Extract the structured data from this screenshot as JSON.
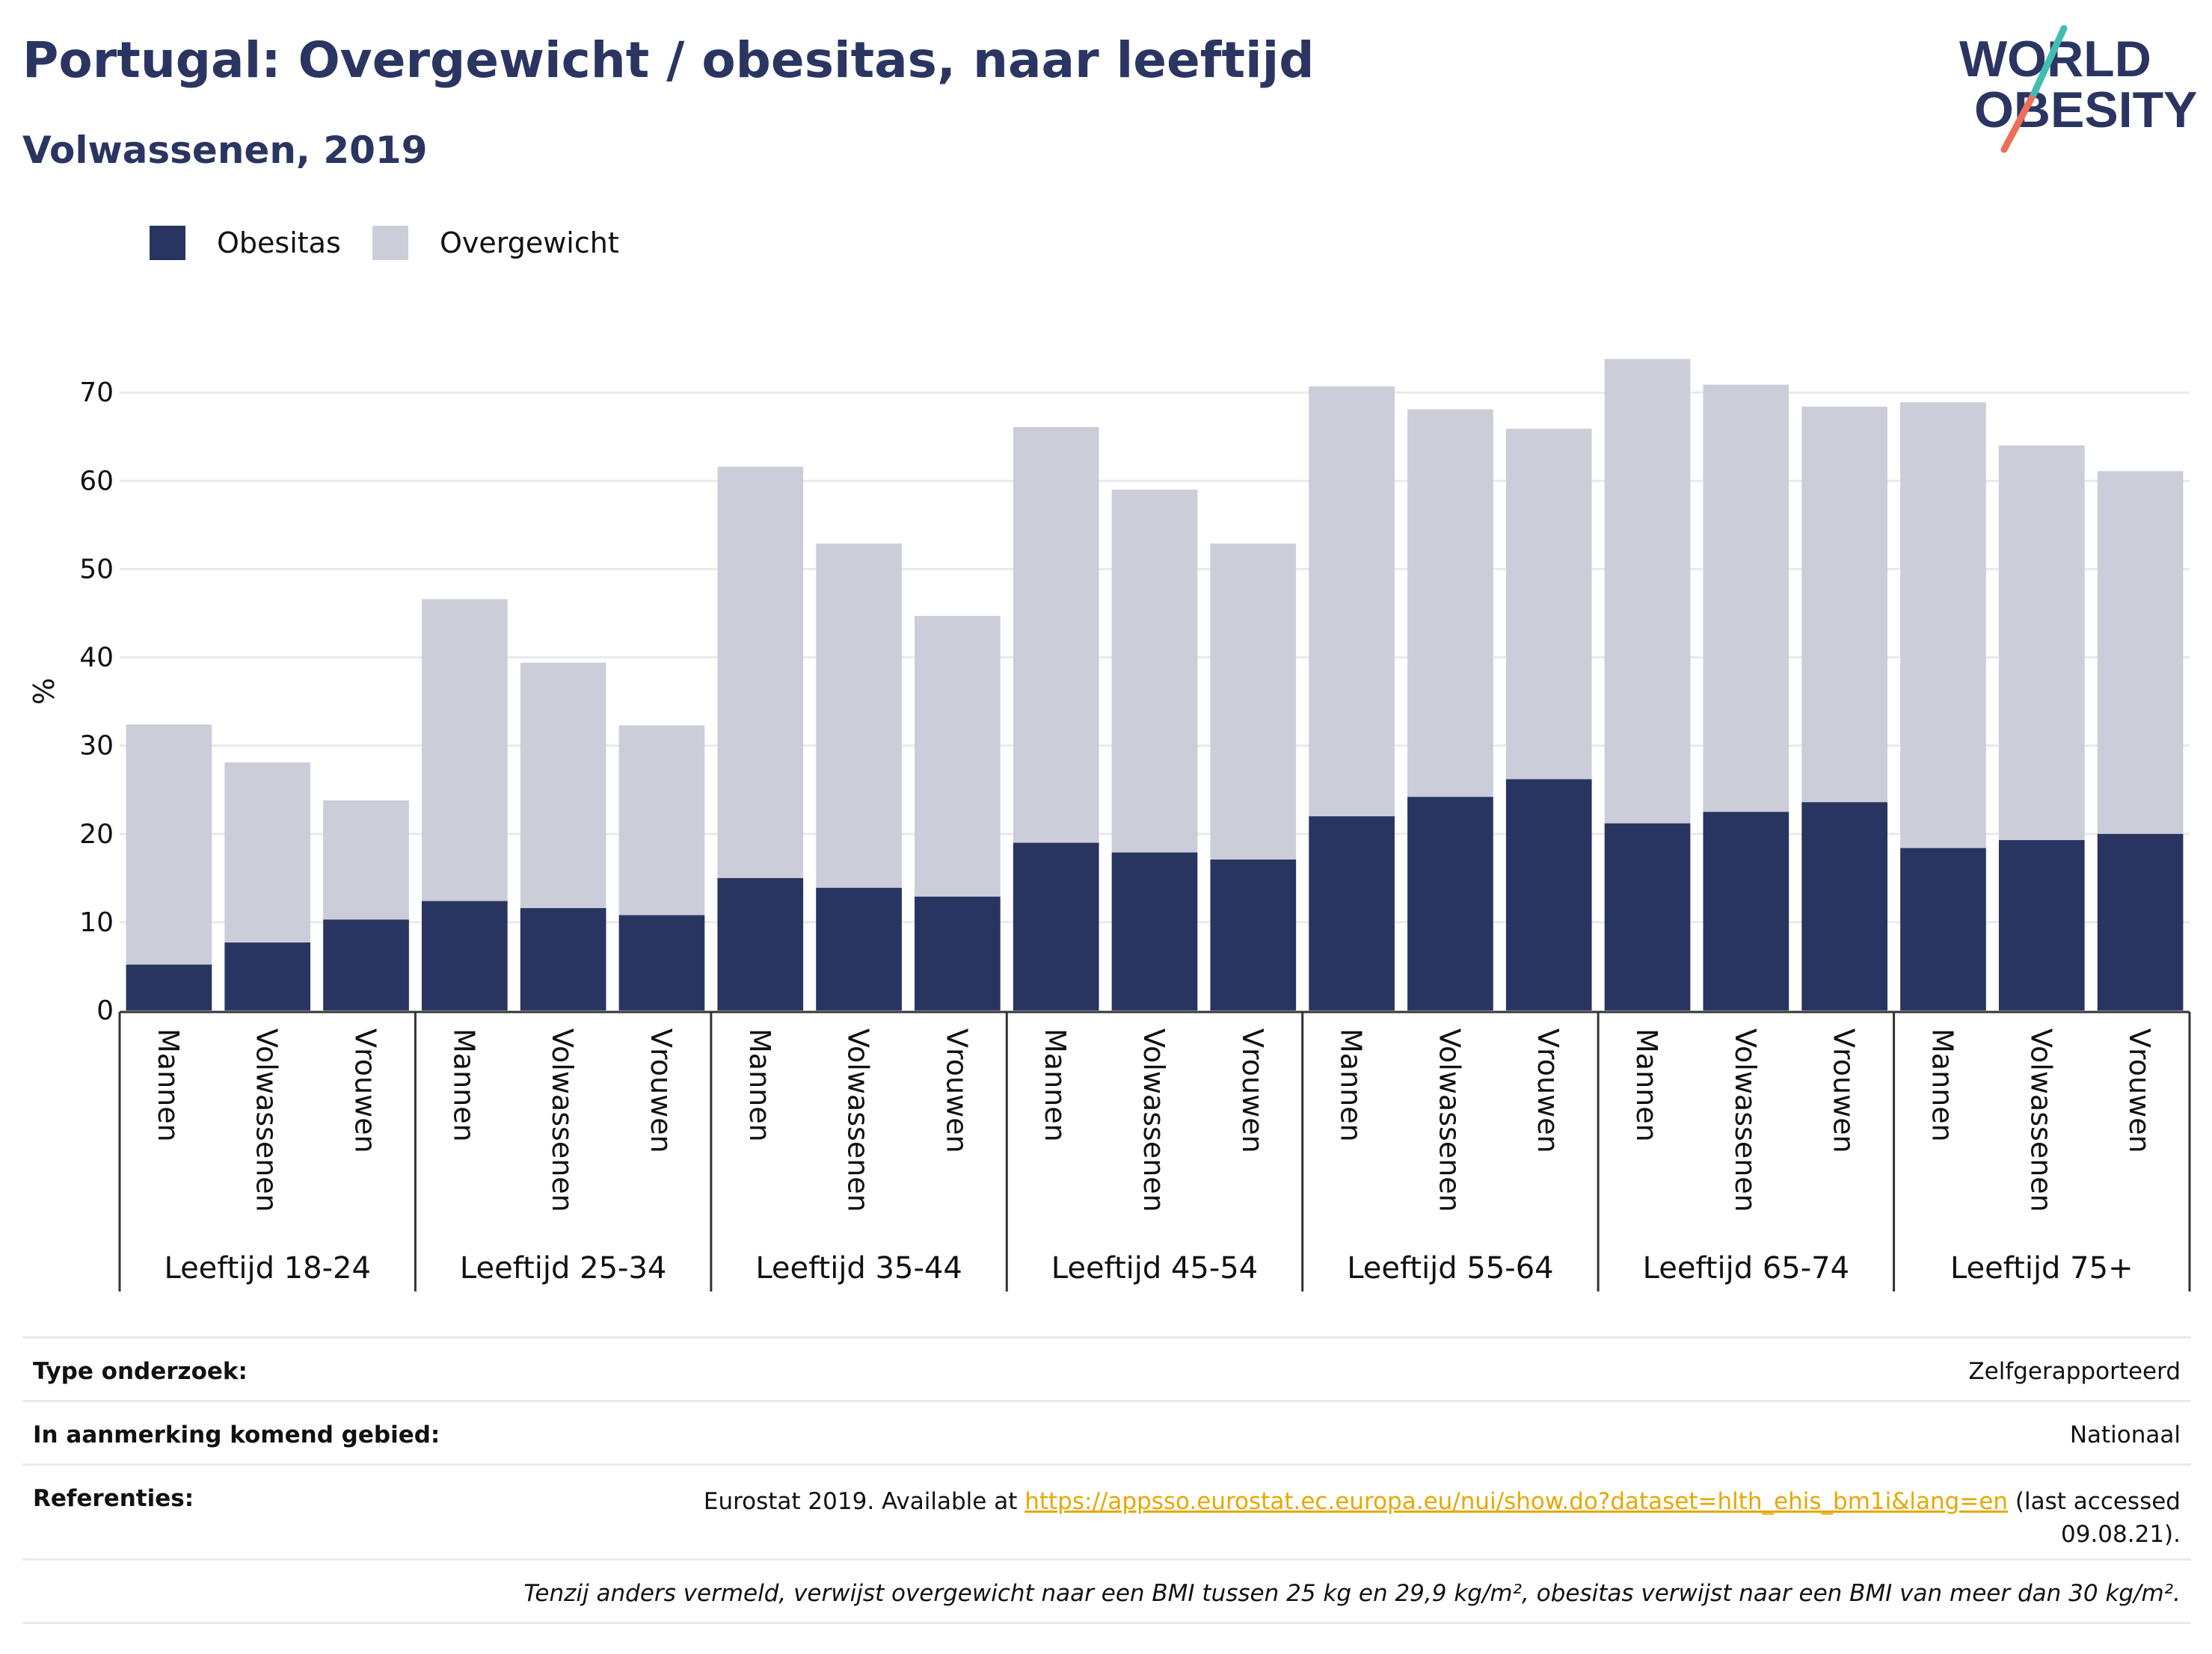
{
  "header": {
    "title": "Portugal: Overgewicht / obesitas, naar leeftijd",
    "subtitle": "Volwassenen, 2019",
    "logo_line1": "WORLD",
    "logo_line2": "OBESITY"
  },
  "colors": {
    "obesity": "#283561",
    "overweight": "#cbcdd8",
    "text": "#111111",
    "title": "#2a3561",
    "link": "#e6a800"
  },
  "chart_data": {
    "type": "bar",
    "stacked": true,
    "ylabel": "%",
    "ylim": [
      0,
      74
    ],
    "yticks": [
      0,
      10,
      20,
      30,
      40,
      50,
      60,
      70
    ],
    "grid": true,
    "legend_position": "top-left",
    "groups": [
      "Leeftijd 18-24",
      "Leeftijd 25-34",
      "Leeftijd 35-44",
      "Leeftijd 45-54",
      "Leeftijd 55-64",
      "Leeftijd 65-74",
      "Leeftijd 75+"
    ],
    "categories": [
      "Mannen",
      "Volwassenen",
      "Vrouwen"
    ],
    "series": [
      {
        "name": "Obesitas",
        "values": [
          [
            5.2,
            7.7,
            10.3
          ],
          [
            12.4,
            11.6,
            10.8
          ],
          [
            15.0,
            13.9,
            12.9
          ],
          [
            19.0,
            17.9,
            17.1
          ],
          [
            22.0,
            24.2,
            26.2
          ],
          [
            21.2,
            22.5,
            23.6
          ],
          [
            18.4,
            19.3,
            20.0
          ]
        ]
      },
      {
        "name": "Overgewicht",
        "values": [
          [
            27.2,
            20.4,
            13.5
          ],
          [
            34.2,
            27.8,
            21.5
          ],
          [
            46.6,
            39.0,
            31.8
          ],
          [
            47.1,
            41.1,
            35.8
          ],
          [
            48.7,
            43.9,
            39.7
          ],
          [
            52.6,
            48.4,
            44.8
          ],
          [
            50.5,
            44.7,
            41.1
          ]
        ]
      }
    ]
  },
  "info": {
    "survey_label": "Type onderzoek:",
    "survey_value": "Zelfgerapporteerd",
    "area_label": "In aanmerking komend gebied:",
    "area_value": "Nationaal",
    "ref_label": "Referenties:",
    "ref_prefix": "Eurostat 2019. Available at ",
    "ref_link": "https://appsso.eurostat.ec.europa.eu/nui/show.do?dataset=hlth_ehis_bm1i&lang=en",
    "ref_suffix": " (last accessed 09.08.21).",
    "note": "Tenzij anders vermeld, verwijst overgewicht naar een BMI tussen 25 kg en 29,9 kg/m², obesitas verwijst naar een BMI van meer dan 30 kg/m²."
  }
}
